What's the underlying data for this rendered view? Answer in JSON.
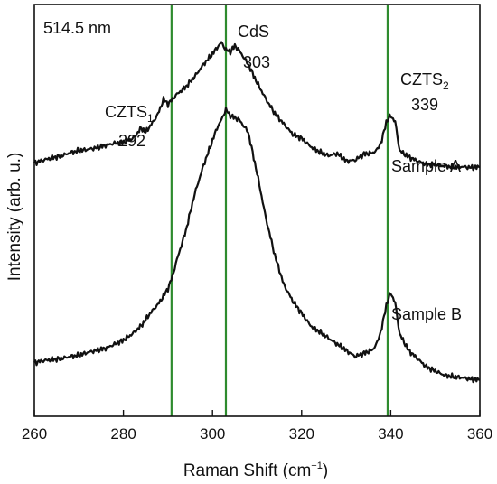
{
  "chart_data": {
    "type": "line",
    "title": "",
    "xlabel": "Raman Shift (cm",
    "xlabel_sup": "−1",
    "xlabel_close": ")",
    "ylabel": "Intensity (arb. u.)",
    "xlim": [
      260,
      360
    ],
    "ylim": [
      0,
      1
    ],
    "y_tick_labels": false,
    "grid": false,
    "legend": "none",
    "x_ticks": [
      260,
      280,
      300,
      320,
      340,
      360
    ],
    "x_tick_labels": [
      "260",
      "280",
      "300",
      "320",
      "340",
      "360"
    ],
    "line_color": "#111111",
    "reference_line_color": "#2e8b2e",
    "reference_lines": [
      {
        "x": 290.8,
        "label": "CZTS",
        "sub": "1",
        "value_label": "292"
      },
      {
        "x": 303.0,
        "label": "CdS",
        "sub": "",
        "value_label": "303"
      },
      {
        "x": 339.3,
        "label": "CZTS",
        "sub": "2",
        "value_label": "339"
      }
    ],
    "excitation_label": "514.5 nm",
    "series": [
      {
        "name": "Sample A",
        "x": [
          260,
          262,
          264,
          266,
          268,
          270,
          272,
          274,
          276,
          278,
          280,
          282,
          283,
          284,
          285,
          286,
          287,
          288,
          289,
          290,
          291,
          292,
          294,
          296,
          298,
          300,
          301,
          302,
          303,
          304,
          305,
          306,
          308,
          310,
          312,
          314,
          316,
          318,
          320,
          322,
          324,
          326,
          328,
          330,
          332,
          334,
          336,
          337,
          338,
          339,
          340,
          341,
          342,
          344,
          346,
          348,
          350,
          352,
          354,
          356,
          358,
          360
        ],
        "y": [
          0.615,
          0.622,
          0.628,
          0.632,
          0.64,
          0.645,
          0.648,
          0.652,
          0.658,
          0.663,
          0.666,
          0.674,
          0.686,
          0.7,
          0.69,
          0.705,
          0.72,
          0.74,
          0.77,
          0.758,
          0.77,
          0.782,
          0.8,
          0.825,
          0.855,
          0.88,
          0.895,
          0.908,
          0.89,
          0.885,
          0.9,
          0.888,
          0.855,
          0.81,
          0.77,
          0.735,
          0.71,
          0.685,
          0.675,
          0.655,
          0.642,
          0.633,
          0.638,
          0.62,
          0.622,
          0.637,
          0.64,
          0.648,
          0.67,
          0.715,
          0.73,
          0.715,
          0.645,
          0.63,
          0.62,
          0.612,
          0.612,
          0.608,
          0.605,
          0.606,
          0.604,
          0.605
        ]
      },
      {
        "name": "Sample B",
        "x": [
          260,
          262,
          264,
          266,
          268,
          270,
          272,
          274,
          276,
          278,
          280,
          282,
          284,
          286,
          288,
          290,
          291,
          292,
          294,
          296,
          298,
          300,
          301,
          302,
          303,
          304,
          306,
          308,
          309,
          310,
          312,
          314,
          316,
          318,
          320,
          322,
          324,
          326,
          328,
          330,
          332,
          334,
          336,
          337,
          338,
          339,
          340,
          341,
          342,
          344,
          346,
          348,
          350,
          352,
          354,
          356,
          358,
          360
        ],
        "y": [
          0.13,
          0.135,
          0.138,
          0.14,
          0.145,
          0.148,
          0.155,
          0.16,
          0.165,
          0.175,
          0.185,
          0.2,
          0.22,
          0.25,
          0.275,
          0.31,
          0.34,
          0.38,
          0.45,
          0.54,
          0.61,
          0.67,
          0.7,
          0.72,
          0.745,
          0.73,
          0.72,
          0.69,
          0.64,
          0.59,
          0.48,
          0.39,
          0.32,
          0.28,
          0.25,
          0.22,
          0.205,
          0.19,
          0.175,
          0.16,
          0.145,
          0.153,
          0.162,
          0.18,
          0.215,
          0.27,
          0.3,
          0.275,
          0.2,
          0.16,
          0.14,
          0.12,
          0.11,
          0.1,
          0.096,
          0.094,
          0.09,
          0.088
        ]
      }
    ]
  }
}
